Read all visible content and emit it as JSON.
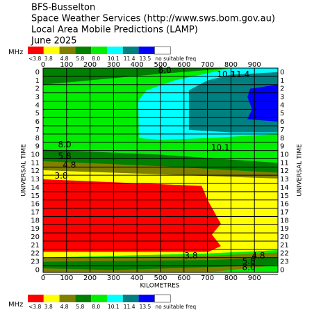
{
  "chart_data": {
    "type": "contour",
    "title_lines": [
      "BFS-Busselton",
      "Space Weather Services (http://www.sws.bom.gov.au)",
      "Local Area Mobile Predictions (LAMP)",
      "June 2025"
    ],
    "legend": {
      "unit": "MHz",
      "labels": [
        "<3.8",
        "3.8",
        "4.8",
        "5.8",
        "8.0",
        "10.1",
        "11.4",
        "13.5",
        "no suitable freq"
      ],
      "colors": [
        "#ff0000",
        "#ffff00",
        "#808000",
        "#008000",
        "#00ee00",
        "#00ffff",
        "#008080",
        "#0000ff",
        "#ffffff"
      ]
    },
    "xlabel": "KILOMETRES",
    "ylabel": "UNIVERSAL TIME",
    "xlim": [
      0,
      1000
    ],
    "xticks": [
      0,
      100,
      200,
      300,
      400,
      500,
      600,
      700,
      800,
      900
    ],
    "ylim": [
      -0.5,
      24.3
    ],
    "yticks": [
      0,
      1,
      2,
      3,
      4,
      5,
      6,
      7,
      8,
      9,
      10,
      11,
      12,
      13,
      14,
      15,
      16,
      17,
      18,
      19,
      20,
      21,
      22,
      23,
      {
        "value": 24,
        "label": "0"
      }
    ],
    "grid": true,
    "regions": [
      {
        "level": 4,
        "points": [
          [
            0,
            -0.5
          ],
          [
            1000,
            -0.5
          ],
          [
            1000,
            24.3
          ],
          [
            0,
            24.3
          ]
        ]
      },
      {
        "level": 3,
        "points": [
          [
            0,
            -0.5
          ],
          [
            800,
            -0.5
          ],
          [
            500,
            0.2
          ],
          [
            0,
            1.5
          ]
        ]
      },
      {
        "level": 5,
        "points": [
          [
            408,
            8.0
          ],
          [
            405,
            3.5
          ],
          [
            440,
            2.2
          ],
          [
            560,
            1.0
          ],
          [
            800,
            -0.5
          ],
          [
            1000,
            -0.5
          ],
          [
            1000,
            7.5
          ],
          [
            700,
            8.0
          ],
          [
            500,
            8.2
          ]
        ]
      },
      {
        "level": 6,
        "points": [
          [
            621,
            7.0
          ],
          [
            621,
            2.2
          ],
          [
            700,
            1.0
          ],
          [
            800,
            0.3
          ],
          [
            1000,
            0.0
          ],
          [
            1000,
            7.3
          ],
          [
            800,
            7.3
          ]
        ]
      },
      {
        "level": 7,
        "points": [
          [
            1000,
            1.5
          ],
          [
            882,
            2.0
          ],
          [
            870,
            3.0
          ],
          [
            890,
            4.5
          ],
          [
            870,
            5.7
          ],
          [
            1000,
            6.0
          ]
        ]
      },
      {
        "level": 3,
        "points": [
          [
            0,
            9.4
          ],
          [
            500,
            10.0
          ],
          [
            1000,
            11.0
          ],
          [
            1000,
            12.5
          ],
          [
            0,
            13.0
          ]
        ]
      },
      {
        "level": 2,
        "points": [
          [
            0,
            10.8
          ],
          [
            500,
            11.4
          ],
          [
            1000,
            12.2
          ],
          [
            1000,
            13.0
          ],
          [
            0,
            13.0
          ]
        ]
      },
      {
        "level": 1,
        "points": [
          [
            0,
            11.9
          ],
          [
            500,
            12.4
          ],
          [
            1000,
            12.9
          ],
          [
            1000,
            21.6
          ],
          [
            700,
            22.0
          ],
          [
            0,
            22.5
          ]
        ]
      },
      {
        "level": 0,
        "points": [
          [
            0,
            13.0
          ],
          [
            675,
            13.8
          ],
          [
            704,
            15.7
          ],
          [
            757,
            18.4
          ],
          [
            719,
            19.7
          ],
          [
            757,
            21.1
          ],
          [
            704,
            21.8
          ],
          [
            0,
            21.8
          ]
        ]
      },
      {
        "level": 2,
        "points": [
          [
            0,
            22.5
          ],
          [
            700,
            22.3
          ],
          [
            1000,
            21.9
          ],
          [
            1000,
            24.3
          ],
          [
            0,
            24.3
          ]
        ]
      },
      {
        "level": 3,
        "points": [
          [
            0,
            23.0
          ],
          [
            700,
            22.8
          ],
          [
            1000,
            22.5
          ],
          [
            1000,
            23.4
          ],
          [
            300,
            24.0
          ],
          [
            0,
            23.8
          ]
        ]
      },
      {
        "level": 4,
        "points": [
          [
            700,
            24.3
          ],
          [
            1000,
            23.4
          ],
          [
            1000,
            24.3
          ]
        ]
      }
    ],
    "annotations": [
      {
        "text": "8.0",
        "x": 518,
        "y": -0.2
      },
      {
        "text": "10.1",
        "x": 780,
        "y": 0.3
      },
      {
        "text": "11.4",
        "x": 840,
        "y": 0.3
      },
      {
        "text": "8.0",
        "x": 92,
        "y": 8.8
      },
      {
        "text": "5.8",
        "x": 92,
        "y": 10.2
      },
      {
        "text": "4.8",
        "x": 112,
        "y": 11.3
      },
      {
        "text": "3.8",
        "x": 77,
        "y": 12.6
      },
      {
        "text": "10.1",
        "x": 755,
        "y": 9.2
      },
      {
        "text": "3.8",
        "x": 630,
        "y": 22.3
      },
      {
        "text": "4.8",
        "x": 917,
        "y": 22.3
      },
      {
        "text": "5.8",
        "x": 876,
        "y": 23.0
      },
      {
        "text": "8.0",
        "x": 876,
        "y": 23.7
      }
    ]
  }
}
